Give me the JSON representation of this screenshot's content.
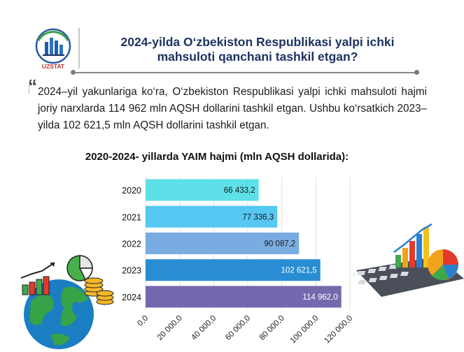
{
  "logo": {
    "text": "UZSTAT"
  },
  "header": {
    "title_line1": "2024-yilda O‘zbekiston Respublikasi yalpi ichki",
    "title_line2": "mahsuloti qanchani tashkil etgan?"
  },
  "intro": {
    "quote_mark": "“",
    "text": "2024–yil yakunlariga ko‘ra, O‘zbekiston Respublikasi yalpi ichki mahsuloti hajmi joriy narxlarda 114 962 mln AQSH dollarini tashkil etgan. Ushbu ko‘rsatkich 2023– yilda 102 621,5 mln AQSH dollarini tashkil etgan."
  },
  "chart_data": {
    "type": "bar",
    "orientation": "horizontal",
    "title": "2020-2024- yillarda YAIM hajmi (mln AQSH dollarida):",
    "categories": [
      "2020",
      "2021",
      "2022",
      "2023",
      "2024"
    ],
    "values": [
      66433.2,
      77336.3,
      90087.2,
      102621.5,
      114962.0
    ],
    "value_labels": [
      "66 433,2",
      "77 336,3",
      "90 087,2",
      "102 621,5",
      "114 962,0"
    ],
    "bar_colors": [
      "#5ee0e8",
      "#56c8f2",
      "#79ace0",
      "#2a8dd3",
      "#7668ae"
    ],
    "xlim": [
      0,
      120000
    ],
    "xticks": [
      "0,0",
      "20 000,0",
      "40 000,0",
      "60 000,0",
      "80 000,0",
      "100 000,0",
      "120 000,0"
    ],
    "grid": true,
    "legend": "none"
  }
}
